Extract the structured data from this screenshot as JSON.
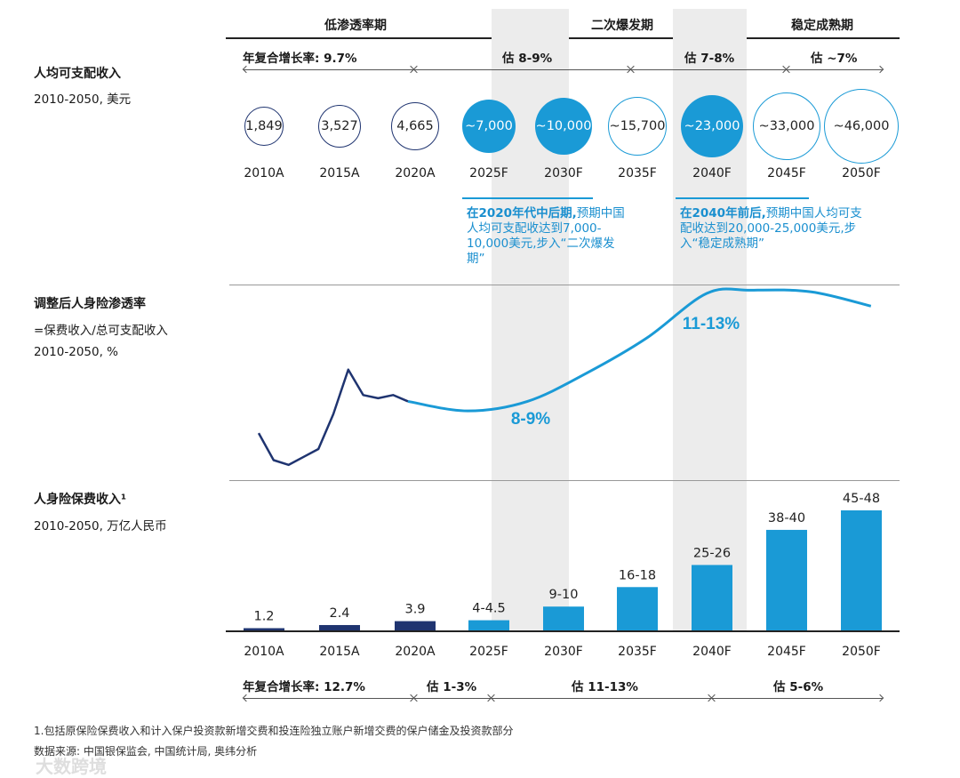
{
  "colors": {
    "dark": "#1f3470",
    "blue": "#1a9ad6",
    "band": "#ececec"
  },
  "phases": [
    "低渗透率期",
    "二次爆发期",
    "稳定成熟期"
  ],
  "income": {
    "title": "人均可支配收入",
    "subtitle": "2010-2050, 美元",
    "rates": [
      "年复合增长率: 9.7%",
      "估 8-9%",
      "估 7-8%",
      "估 ~7%"
    ],
    "years": [
      "2010A",
      "2015A",
      "2020A",
      "2025F",
      "2030F",
      "2035F",
      "2040F",
      "2045F",
      "2050F"
    ],
    "values": [
      "1,849",
      "3,527",
      "4,665",
      "~7,000",
      "~10,000",
      "~15,700",
      "~23,000",
      "~33,000",
      "~46,000"
    ],
    "styles": [
      "dark",
      "dark",
      "dark",
      "fill",
      "fill",
      "outline",
      "fill",
      "outline",
      "outline"
    ],
    "note1_bold": "在2020年代中后期,",
    "note1_rest": "预期中国人均可支配收达到7,000-10,000美元,步入“二次爆发期”",
    "note2_bold": "在2040年前后,",
    "note2_rest": "预期中国人均可支配收达到20,000-25,000美元,步入“稳定成熟期”"
  },
  "penetration": {
    "title": "调整后人身险渗透率",
    "subtitle1": "=保费收入/总可支配收入",
    "subtitle2": "2010-2050, %",
    "label_mid": "8-9%",
    "label_late": "11-13%"
  },
  "premium": {
    "title": "人身险保费收入¹",
    "subtitle": "2010-2050, 万亿人民币",
    "rates": [
      "年复合增长率: 12.7%",
      "估 1-3%",
      "估 11-13%",
      "估 5-6%"
    ]
  },
  "footnote": "1.包括原保险保费收入和计入保户投资款新增交费和投连险独立账户新增交费的保户储金及投资款部分",
  "source": "数据来源: 中国银保监会, 中国统计局, 奥纬分析",
  "watermark": "大数跨境",
  "chart_data": [
    {
      "type": "line",
      "title": "调整后人身险渗透率",
      "ylabel": "%",
      "series": [
        {
          "name": "actual",
          "x": [
            2010,
            2011,
            2012,
            2013,
            2014,
            2015,
            2016,
            2017,
            2018,
            2019,
            2020
          ],
          "values": [
            7.6,
            6.75,
            6.6,
            6.85,
            7.1,
            8.2,
            9.6,
            8.8,
            8.7,
            8.8,
            8.6
          ]
        },
        {
          "name": "forecast",
          "x": [
            2020,
            2024,
            2028,
            2032,
            2036,
            2040,
            2043,
            2047,
            2051
          ],
          "values": [
            8.6,
            8.3,
            8.6,
            9.5,
            10.6,
            12.0,
            12.1,
            12.05,
            11.6
          ]
        }
      ],
      "annotations": [
        "8-9%",
        "11-13%"
      ]
    },
    {
      "type": "bar",
      "title": "人身险保费收入",
      "ylabel": "万亿人民币",
      "categories": [
        "2010A",
        "2015A",
        "2020A",
        "2025F",
        "2030F",
        "2035F",
        "2040F",
        "2045F",
        "2050F"
      ],
      "values": [
        1.2,
        2.4,
        3.9,
        4.25,
        9.5,
        17,
        25.5,
        39,
        46.5
      ],
      "labels": [
        "1.2",
        "2.4",
        "3.9",
        "4-4.5",
        "9-10",
        "16-18",
        "25-26",
        "38-40",
        "45-48"
      ],
      "ylim": [
        0,
        50
      ]
    }
  ]
}
